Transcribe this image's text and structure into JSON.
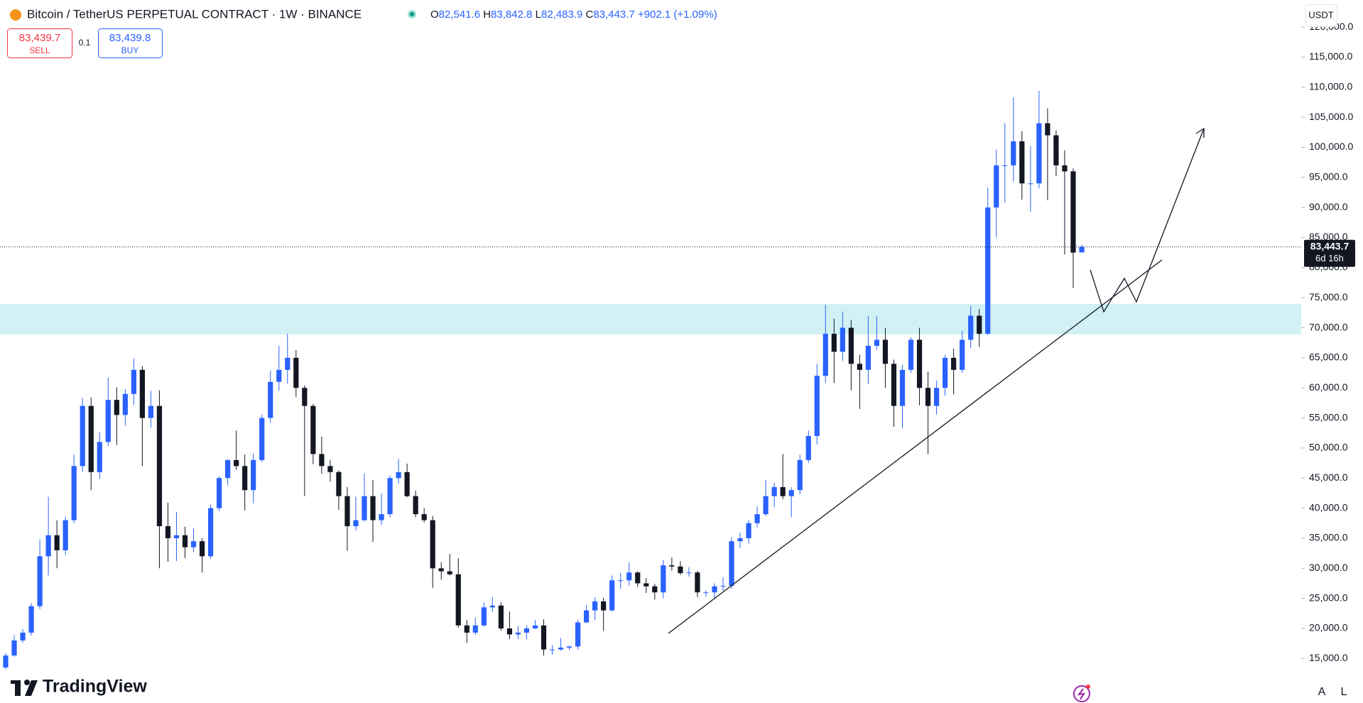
{
  "header": {
    "title": "Bitcoin / TetherUS PERPETUAL CONTRACT · 1W · BINANCE",
    "ohlc": [
      {
        "key": "O",
        "value": "82,541.6"
      },
      {
        "key": "H",
        "value": "83,842.8"
      },
      {
        "key": "L",
        "value": "82,483.9"
      },
      {
        "key": "C",
        "value": "83,443.7"
      }
    ],
    "change": "+902.1 (+1.09%)",
    "sell": {
      "price": "83,439.7",
      "label": "SELL"
    },
    "quantity": "0.1",
    "buy": {
      "price": "83,439.8",
      "label": "BUY"
    }
  },
  "currency": "USDT",
  "logo": "TradingView",
  "buttons": [
    "A",
    "L"
  ],
  "chart_data": {
    "type": "candlestick",
    "up_color": "#2962ff",
    "down_color": "#131722",
    "ylim": [
      7600,
      124500
    ],
    "yticks": [
      {
        "value": 15000,
        "label": "15,000.0"
      },
      {
        "value": 20000,
        "label": "20,000.0"
      },
      {
        "value": 25000,
        "label": "25,000.0"
      },
      {
        "value": 30000,
        "label": "30,000.0"
      },
      {
        "value": 35000,
        "label": "35,000.0"
      },
      {
        "value": 40000,
        "label": "40,000.0"
      },
      {
        "value": 45000,
        "label": "45,000.0"
      },
      {
        "value": 50000,
        "label": "50,000.0"
      },
      {
        "value": 55000,
        "label": "55,000.0"
      },
      {
        "value": 60000,
        "label": "60,000.0"
      },
      {
        "value": 65000,
        "label": "65,000.0"
      },
      {
        "value": 70000,
        "label": "70,000.0"
      },
      {
        "value": 75000,
        "label": "75,000.0"
      },
      {
        "value": 80000,
        "label": "80,000.0"
      },
      {
        "value": 85000,
        "label": "85,000.0"
      },
      {
        "value": 90000,
        "label": "90,000.0"
      },
      {
        "value": 95000,
        "label": "95,000.0"
      },
      {
        "value": 100000,
        "label": "100,000.0"
      },
      {
        "value": 105000,
        "label": "105,000.0"
      },
      {
        "value": 110000,
        "label": "110,000.0"
      },
      {
        "value": 115000,
        "label": "115,000.0"
      },
      {
        "value": 120000,
        "label": "120,000.0"
      }
    ],
    "last_price": {
      "value": 83443.7,
      "label": "83,443.7"
    },
    "countdown": "6d 16h",
    "open": [
      13500,
      15500,
      18000,
      19300,
      23700,
      32000,
      35500,
      33000,
      38000,
      47000,
      57000,
      46000,
      51000,
      58000,
      55500,
      59000,
      63000,
      55000,
      57000,
      37000,
      35000,
      35500,
      33500,
      34500,
      32000,
      40000,
      45000,
      48000,
      47000,
      43000,
      48000,
      55000,
      61000,
      63000,
      65000,
      60000,
      57000,
      49000,
      47000,
      46000,
      42000,
      37000,
      38000,
      42000,
      38000,
      39000,
      45000,
      46000,
      42000,
      39000,
      38000,
      30000,
      29500,
      29000,
      20500,
      19300,
      20500,
      23500,
      23800,
      20000,
      19000,
      19300,
      20000,
      20500,
      16500,
      16500,
      16800,
      17000,
      21000,
      23000,
      24500,
      23000,
      28000,
      28000,
      29300,
      27500,
      27000,
      26000,
      30500,
      30300,
      29200,
      29300,
      26000,
      26000,
      27000,
      27100,
      34500,
      35000,
      37500,
      39000,
      42000,
      43500,
      42000,
      43000,
      48000,
      52000,
      62000,
      69000,
      66000,
      70000,
      64000,
      63000,
      67000,
      68000,
      64000,
      57000,
      63000,
      68000,
      60000,
      57000,
      60000,
      65000,
      63000,
      68000,
      72000,
      69000,
      90000,
      97000,
      97000,
      101000,
      94000,
      94000,
      104000,
      102000,
      97000,
      96000,
      82541.6
    ],
    "high": [
      15900,
      18900,
      19900,
      24200,
      34800,
      41900,
      38000,
      38600,
      48900,
      58300,
      58400,
      52600,
      61700,
      60100,
      59800,
      64900,
      63600,
      59500,
      59600,
      40900,
      39400,
      36900,
      36600,
      35000,
      40600,
      45300,
      48100,
      52900,
      48900,
      49100,
      55600,
      62900,
      67000,
      69000,
      66300,
      60400,
      57300,
      51900,
      48000,
      46300,
      43500,
      41900,
      45800,
      44700,
      42500,
      45400,
      48200,
      47400,
      42900,
      40000,
      38700,
      31000,
      32400,
      31700,
      21400,
      21800,
      24300,
      25200,
      24400,
      22800,
      20400,
      20500,
      21400,
      21500,
      17200,
      18400,
      17100,
      21400,
      23900,
      25200,
      25100,
      28800,
      29200,
      31000,
      29500,
      28400,
      27400,
      31400,
      31800,
      31200,
      30200,
      29600,
      26300,
      27500,
      28500,
      35200,
      35900,
      38000,
      40300,
      44700,
      44200,
      49000,
      43500,
      48900,
      52900,
      64000,
      73800,
      71500,
      72700,
      71300,
      65500,
      71900,
      71900,
      70000,
      64700,
      63800,
      68400,
      70000,
      62700,
      61200,
      65500,
      66500,
      69500,
      73600,
      73100,
      93300,
      99600,
      104000,
      108300,
      102700,
      100200,
      109400,
      106500,
      102800,
      99500,
      96500,
      83842.8
    ],
    "low": [
      13200,
      15300,
      17600,
      18800,
      23200,
      28800,
      30000,
      32200,
      37500,
      46000,
      43000,
      44900,
      50300,
      50500,
      53700,
      57200,
      47000,
      53400,
      30000,
      31100,
      31200,
      31700,
      32700,
      29300,
      31600,
      39500,
      43800,
      46400,
      39600,
      40800,
      47700,
      54200,
      59500,
      60700,
      58500,
      42000,
      47300,
      45700,
      44400,
      39700,
      32900,
      36300,
      37800,
      34400,
      37200,
      38500,
      44100,
      41800,
      38500,
      37600,
      26700,
      28100,
      28800,
      20100,
      17600,
      18900,
      20300,
      22800,
      19600,
      18200,
      18200,
      18200,
      19900,
      15500,
      15600,
      16300,
      16400,
      16500,
      20900,
      21400,
      19600,
      22800,
      26600,
      27100,
      26900,
      25900,
      24800,
      25000,
      29600,
      28900,
      28600,
      25200,
      25300,
      24900,
      26300,
      26600,
      33400,
      34100,
      36800,
      38700,
      40200,
      41500,
      38500,
      42300,
      47500,
      50600,
      60800,
      60800,
      64500,
      59600,
      56500,
      60600,
      66300,
      60000,
      53500,
      53300,
      62500,
      57100,
      49000,
      55600,
      58700,
      58900,
      62500,
      66600,
      66800,
      68800,
      85000,
      90800,
      94300,
      91300,
      89300,
      93200,
      91200,
      95200,
      82200,
      76600,
      82483.9
    ],
    "close": [
      15500,
      18000,
      19300,
      23700,
      32000,
      35500,
      33000,
      38000,
      47000,
      57000,
      46000,
      51000,
      58000,
      55500,
      59000,
      63000,
      55000,
      57000,
      37000,
      35000,
      35500,
      33500,
      34500,
      32000,
      40000,
      45000,
      48000,
      47000,
      43000,
      48000,
      55000,
      61000,
      63000,
      65000,
      60000,
      57000,
      49000,
      47000,
      46000,
      42000,
      37000,
      38000,
      42000,
      38000,
      39000,
      45000,
      46000,
      42000,
      39000,
      38000,
      30000,
      29500,
      29000,
      20500,
      19300,
      20500,
      23500,
      23800,
      20000,
      19000,
      19300,
      20000,
      20500,
      16500,
      16500,
      16800,
      17000,
      21000,
      23000,
      24500,
      23000,
      28000,
      28000,
      29300,
      27500,
      27000,
      26000,
      30500,
      30300,
      29200,
      29300,
      26000,
      26000,
      27000,
      27100,
      34500,
      35000,
      37500,
      39000,
      42000,
      43500,
      42000,
      43000,
      48000,
      52000,
      62000,
      69000,
      66000,
      70000,
      64000,
      63000,
      67000,
      68000,
      64000,
      57000,
      63000,
      68000,
      60000,
      57000,
      60000,
      65000,
      63000,
      68000,
      72000,
      69000,
      90000,
      97000,
      97000,
      101000,
      94000,
      94000,
      104000,
      102000,
      97000,
      96000,
      82500,
      83443.7
    ]
  }
}
